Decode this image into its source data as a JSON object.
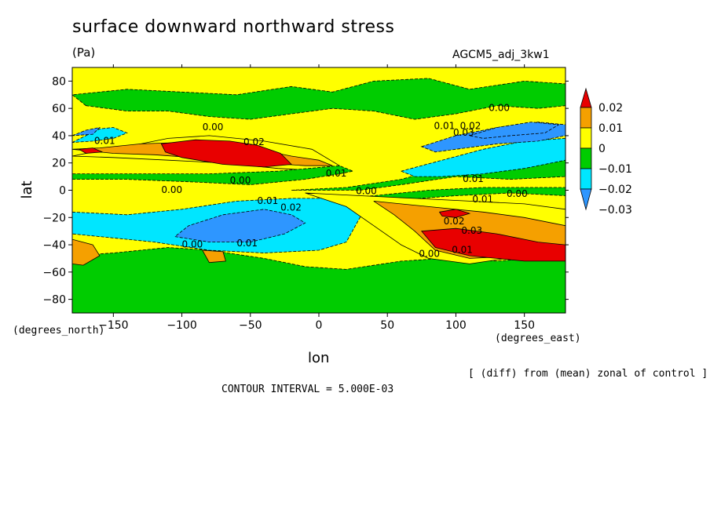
{
  "chart_data": {
    "type": "heatmap",
    "title": "surface downward northward stress",
    "units": "(Pa)",
    "run_name": "AGCM5_adj_3kw1",
    "xlabel": "lon",
    "ylabel": "lat",
    "x_unit": "(degrees_east)",
    "y_unit": "(degrees_north)",
    "xlim": [
      -180,
      180
    ],
    "ylim": [
      -90,
      90
    ],
    "x_ticks": [
      -150,
      -100,
      -50,
      0,
      50,
      100,
      150
    ],
    "y_ticks": [
      -80,
      -60,
      -40,
      -20,
      0,
      20,
      40,
      60,
      80
    ],
    "x_tick_labels": [
      "−150",
      "−100",
      "−50",
      "0",
      "50",
      "100",
      "150"
    ],
    "y_tick_labels": [
      "−80",
      "−60",
      "−40",
      "−20",
      "0",
      "20",
      "40",
      "60",
      "80"
    ],
    "contour_interval": 0.005,
    "contour_interval_text": "CONTOUR INTERVAL = 5.000E-03",
    "note": "[ (diff) from (mean) zonal of control ]",
    "colorbar": {
      "levels": [
        0.02,
        0.01,
        0,
        -0.01,
        -0.02,
        -0.03
      ],
      "labels": [
        "0.02",
        "0.01",
        "0",
        "−0.01",
        "−0.02",
        "−0.03"
      ],
      "colors": [
        "#e80000",
        "#f5a000",
        "#ffff00",
        "#00cc00",
        "#00e6ff",
        "#2e96ff"
      ]
    },
    "contour_labels": [
      {
        "text": "0.00",
        "lon": -85,
        "lat": 44
      },
      {
        "text": "0.01",
        "lon": -164,
        "lat": 34
      },
      {
        "text": "0.02",
        "lon": -55,
        "lat": 33
      },
      {
        "text": "0.00",
        "lon": -65,
        "lat": 5
      },
      {
        "text": "0.00",
        "lon": -115,
        "lat": -2
      },
      {
        "text": "0.01",
        "lon": 5,
        "lat": 10
      },
      {
        "text": "0.00",
        "lon": 27,
        "lat": -3
      },
      {
        "text": "0.01",
        "lon": -45,
        "lat": -10
      },
      {
        "text": "0.02",
        "lon": -28,
        "lat": -15
      },
      {
        "text": "0.00",
        "lon": -100,
        "lat": -42
      },
      {
        "text": "0.01",
        "lon": -60,
        "lat": -41
      },
      {
        "text": "0.00",
        "lon": 124,
        "lat": 58
      },
      {
        "text": "0.01",
        "lon": 84,
        "lat": 45
      },
      {
        "text": "0.02",
        "lon": 103,
        "lat": 45
      },
      {
        "text": "0.03",
        "lon": 98,
        "lat": 40
      },
      {
        "text": "0.01",
        "lon": 105,
        "lat": 6
      },
      {
        "text": "0.01",
        "lon": 112,
        "lat": -9
      },
      {
        "text": "0.00",
        "lon": 137,
        "lat": -5
      },
      {
        "text": "0.02",
        "lon": 91,
        "lat": -25
      },
      {
        "text": "0.03",
        "lon": 104,
        "lat": -32
      },
      {
        "text": "0.00",
        "lon": 73,
        "lat": -49
      },
      {
        "text": "0.01",
        "lon": 97,
        "lat": -46
      }
    ],
    "regions": [
      {
        "value": -0.015,
        "points": [
          [
            -180,
            35
          ],
          [
            -170,
            40
          ],
          [
            -160,
            45
          ],
          [
            -150,
            46
          ],
          [
            -140,
            42
          ],
          [
            -150,
            38
          ],
          [
            -165,
            36
          ]
        ]
      },
      {
        "value": -0.025,
        "points": [
          [
            -180,
            40
          ],
          [
            -170,
            44
          ],
          [
            -160,
            46
          ],
          [
            -165,
            41
          ]
        ]
      },
      {
        "value": 0.005,
        "points": [
          [
            -180,
            25
          ],
          [
            -165,
            28
          ],
          [
            -140,
            32
          ],
          [
            -110,
            38
          ],
          [
            -80,
            40
          ],
          [
            -40,
            36
          ],
          [
            -5,
            30
          ],
          [
            15,
            18
          ],
          [
            5,
            14
          ],
          [
            -30,
            16
          ],
          [
            -70,
            20
          ],
          [
            -110,
            22
          ],
          [
            -150,
            24
          ]
        ]
      },
      {
        "value": 0.015,
        "points": [
          [
            -180,
            30
          ],
          [
            -160,
            31
          ],
          [
            -130,
            34
          ],
          [
            -100,
            35
          ],
          [
            -80,
            34
          ],
          [
            -60,
            32
          ],
          [
            -40,
            29
          ],
          [
            -20,
            25
          ],
          [
            0,
            22
          ],
          [
            10,
            18
          ],
          [
            -10,
            18
          ],
          [
            -40,
            20
          ],
          [
            -80,
            23
          ],
          [
            -120,
            26
          ],
          [
            -150,
            27
          ]
        ]
      },
      {
        "value": 0.025,
        "points": [
          [
            -115,
            34
          ],
          [
            -90,
            37
          ],
          [
            -65,
            36
          ],
          [
            -45,
            33
          ],
          [
            -28,
            27
          ],
          [
            -20,
            19
          ],
          [
            -40,
            17
          ],
          [
            -70,
            19
          ],
          [
            -100,
            24
          ],
          [
            -112,
            28
          ]
        ]
      },
      {
        "value": 0.025,
        "points": [
          [
            -175,
            30
          ],
          [
            -165,
            31
          ],
          [
            -158,
            28
          ],
          [
            -170,
            27
          ]
        ]
      },
      {
        "value": -0.005,
        "points": [
          [
            -180,
            8
          ],
          [
            -140,
            8
          ],
          [
            -90,
            6
          ],
          [
            -50,
            4
          ],
          [
            -10,
            8
          ],
          [
            15,
            12
          ],
          [
            25,
            14
          ],
          [
            15,
            18
          ],
          [
            -30,
            14
          ],
          [
            -80,
            12
          ],
          [
            -130,
            12
          ],
          [
            -180,
            12
          ]
        ]
      },
      {
        "value": -0.005,
        "points": [
          [
            10,
            -6
          ],
          [
            40,
            -4
          ],
          [
            80,
            0
          ],
          [
            120,
            2
          ],
          [
            180,
            2
          ],
          [
            180,
            -4
          ],
          [
            140,
            -2
          ],
          [
            100,
            -4
          ],
          [
            60,
            -7
          ],
          [
            30,
            -8
          ]
        ]
      },
      {
        "value": -0.005,
        "points": [
          [
            -180,
            -48
          ],
          [
            -150,
            -46
          ],
          [
            -110,
            -42
          ],
          [
            -80,
            -44
          ],
          [
            -40,
            -50
          ],
          [
            -10,
            -56
          ],
          [
            20,
            -58
          ],
          [
            60,
            -52
          ],
          [
            90,
            -50
          ],
          [
            130,
            -52
          ],
          [
            180,
            -48
          ],
          [
            180,
            -90
          ],
          [
            -180,
            -90
          ]
        ]
      },
      {
        "value": -0.005,
        "points": [
          [
            -170,
            62
          ],
          [
            -140,
            58
          ],
          [
            -110,
            58
          ],
          [
            -80,
            54
          ],
          [
            -50,
            52
          ],
          [
            -20,
            56
          ],
          [
            10,
            60
          ],
          [
            40,
            58
          ],
          [
            70,
            52
          ],
          [
            100,
            56
          ],
          [
            130,
            62
          ],
          [
            160,
            60
          ],
          [
            180,
            62
          ],
          [
            180,
            78
          ],
          [
            150,
            80
          ],
          [
            110,
            74
          ],
          [
            80,
            82
          ],
          [
            40,
            80
          ],
          [
            10,
            72
          ],
          [
            -20,
            76
          ],
          [
            -60,
            70
          ],
          [
            -100,
            72
          ],
          [
            -140,
            74
          ],
          [
            -180,
            70
          ]
        ]
      },
      {
        "value": -0.005,
        "points": [
          [
            -20,
            0
          ],
          [
            20,
            2
          ],
          [
            60,
            8
          ],
          [
            90,
            16
          ],
          [
            120,
            26
          ],
          [
            150,
            32
          ],
          [
            180,
            36
          ],
          [
            180,
            10
          ],
          [
            140,
            8
          ],
          [
            100,
            10
          ],
          [
            60,
            4
          ],
          [
            30,
            0
          ]
        ]
      },
      {
        "value": -0.015,
        "points": [
          [
            60,
            14
          ],
          [
            90,
            22
          ],
          [
            120,
            30
          ],
          [
            150,
            36
          ],
          [
            180,
            38
          ],
          [
            180,
            22
          ],
          [
            150,
            16
          ],
          [
            120,
            12
          ],
          [
            90,
            10
          ],
          [
            70,
            10
          ]
        ]
      },
      {
        "value": -0.025,
        "points": [
          [
            75,
            32
          ],
          [
            100,
            40
          ],
          [
            130,
            46
          ],
          [
            160,
            50
          ],
          [
            180,
            48
          ],
          [
            180,
            40
          ],
          [
            160,
            36
          ],
          [
            130,
            34
          ],
          [
            100,
            30
          ],
          [
            85,
            28
          ]
        ]
      },
      {
        "value": -0.035,
        "points": [
          [
            110,
            40
          ],
          [
            130,
            46
          ],
          [
            155,
            50
          ],
          [
            175,
            48
          ],
          [
            165,
            42
          ],
          [
            140,
            40
          ],
          [
            120,
            38
          ]
        ]
      },
      {
        "value": -0.015,
        "points": [
          [
            -180,
            -16
          ],
          [
            -140,
            -18
          ],
          [
            -100,
            -14
          ],
          [
            -60,
            -8
          ],
          [
            -20,
            -6
          ],
          [
            20,
            -6
          ],
          [
            40,
            -12
          ],
          [
            30,
            -20
          ],
          [
            20,
            -38
          ],
          [
            0,
            -44
          ],
          [
            -40,
            -46
          ],
          [
            -80,
            -44
          ],
          [
            -120,
            -38
          ],
          [
            -160,
            -34
          ],
          [
            -180,
            -32
          ]
        ]
      },
      {
        "value": -0.025,
        "points": [
          [
            -105,
            -34
          ],
          [
            -80,
            -38
          ],
          [
            -50,
            -38
          ],
          [
            -25,
            -32
          ],
          [
            -10,
            -24
          ],
          [
            -20,
            -18
          ],
          [
            -40,
            -14
          ],
          [
            -70,
            -18
          ],
          [
            -95,
            -26
          ]
        ]
      },
      {
        "value": 0.005,
        "points": [
          [
            -10,
            -2
          ],
          [
            30,
            -4
          ],
          [
            70,
            -6
          ],
          [
            110,
            -8
          ],
          [
            150,
            -10
          ],
          [
            180,
            -14
          ],
          [
            180,
            -40
          ],
          [
            150,
            -48
          ],
          [
            110,
            -54
          ],
          [
            80,
            -50
          ],
          [
            60,
            -40
          ],
          [
            40,
            -26
          ],
          [
            20,
            -12
          ]
        ]
      },
      {
        "value": 0.015,
        "points": [
          [
            40,
            -8
          ],
          [
            80,
            -12
          ],
          [
            120,
            -16
          ],
          [
            150,
            -20
          ],
          [
            180,
            -26
          ],
          [
            180,
            -42
          ],
          [
            150,
            -48
          ],
          [
            110,
            -50
          ],
          [
            85,
            -44
          ],
          [
            70,
            -30
          ],
          [
            55,
            -18
          ]
        ]
      },
      {
        "value": 0.025,
        "points": [
          [
            75,
            -30
          ],
          [
            100,
            -28
          ],
          [
            130,
            -32
          ],
          [
            160,
            -38
          ],
          [
            180,
            -40
          ],
          [
            180,
            -52
          ],
          [
            150,
            -52
          ],
          [
            110,
            -48
          ],
          [
            85,
            -42
          ]
        ]
      },
      {
        "value": 0.025,
        "points": [
          [
            -180,
            -40
          ],
          [
            -172,
            -42
          ],
          [
            -168,
            -48
          ],
          [
            -175,
            -52
          ],
          [
            -180,
            -50
          ]
        ]
      },
      {
        "value": 0.015,
        "points": [
          [
            -180,
            -36
          ],
          [
            -165,
            -40
          ],
          [
            -160,
            -48
          ],
          [
            -172,
            -55
          ],
          [
            -180,
            -54
          ]
        ]
      },
      {
        "value": 0.025,
        "points": [
          [
            88,
            -16
          ],
          [
            100,
            -14
          ],
          [
            110,
            -17
          ],
          [
            100,
            -20
          ],
          [
            90,
            -19
          ]
        ]
      },
      {
        "value": 0.015,
        "points": [
          [
            -85,
            -44
          ],
          [
            -70,
            -45
          ],
          [
            -68,
            -52
          ],
          [
            -80,
            -53
          ]
        ]
      }
    ]
  }
}
